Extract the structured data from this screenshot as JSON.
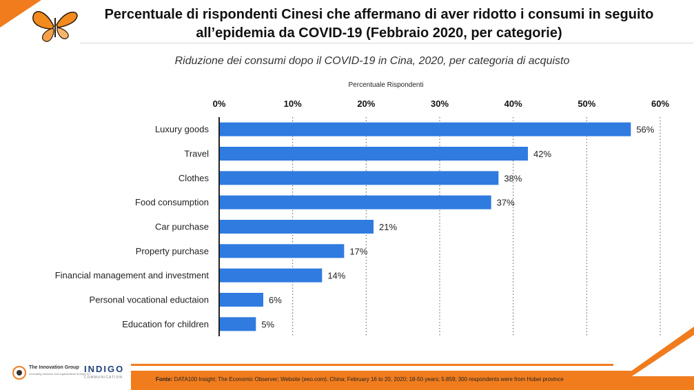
{
  "header": {
    "title_line1": "Percentuale di rispondenti Cinesi che affermano di aver ridotto i consumi in seguito",
    "title_line2": "all’epidemia da COVID-19 (Febbraio 2020, per categorie)"
  },
  "chart_data": {
    "type": "bar",
    "orientation": "horizontal",
    "title": "Riduzione dei consumi dopo il COVID-19 in Cina, 2020, per categoria di acquisto",
    "xlabel": "Percentuale Rispondenti",
    "ylabel": "",
    "categories": [
      "Luxury goods",
      "Travel",
      "Clothes",
      "Food consumption",
      "Car purchase",
      "Property purchase",
      "Financial management and investment",
      "Personal vocational eductaion",
      "Education for children"
    ],
    "values": [
      56,
      42,
      38,
      37,
      21,
      17,
      14,
      6,
      5
    ],
    "value_labels": [
      "56%",
      "42%",
      "38%",
      "37%",
      "21%",
      "17%",
      "14%",
      "6%",
      "5%"
    ],
    "xlim": [
      0,
      60
    ],
    "xticks": [
      "0%",
      "10%",
      "20%",
      "30%",
      "40%",
      "50%",
      "60%"
    ],
    "tick_values": [
      0,
      10,
      20,
      30,
      40,
      50,
      60
    ],
    "grid": "vertical dotted",
    "bar_color": "#2f7be0",
    "axis_position": "top"
  },
  "footer": {
    "source_label": "Fonte:",
    "source_text": " DATA100 Insight; The Economic Observer; Website (eeo.com). China; February 16 to 20, 2020; 18-50 years; 5.859; 300 respondents were from Hubei province"
  },
  "logos": {
    "innovation_group": "The Innovation Group",
    "innovation_group_tagline": "Innovating business and organizations through ICT",
    "indigo": "INDIGO",
    "indigo_sub": "COMMUNICATION"
  },
  "colors": {
    "accent": "#f07c1e",
    "bar": "#2f7be0"
  },
  "icons": [
    "butterfly-icon"
  ]
}
